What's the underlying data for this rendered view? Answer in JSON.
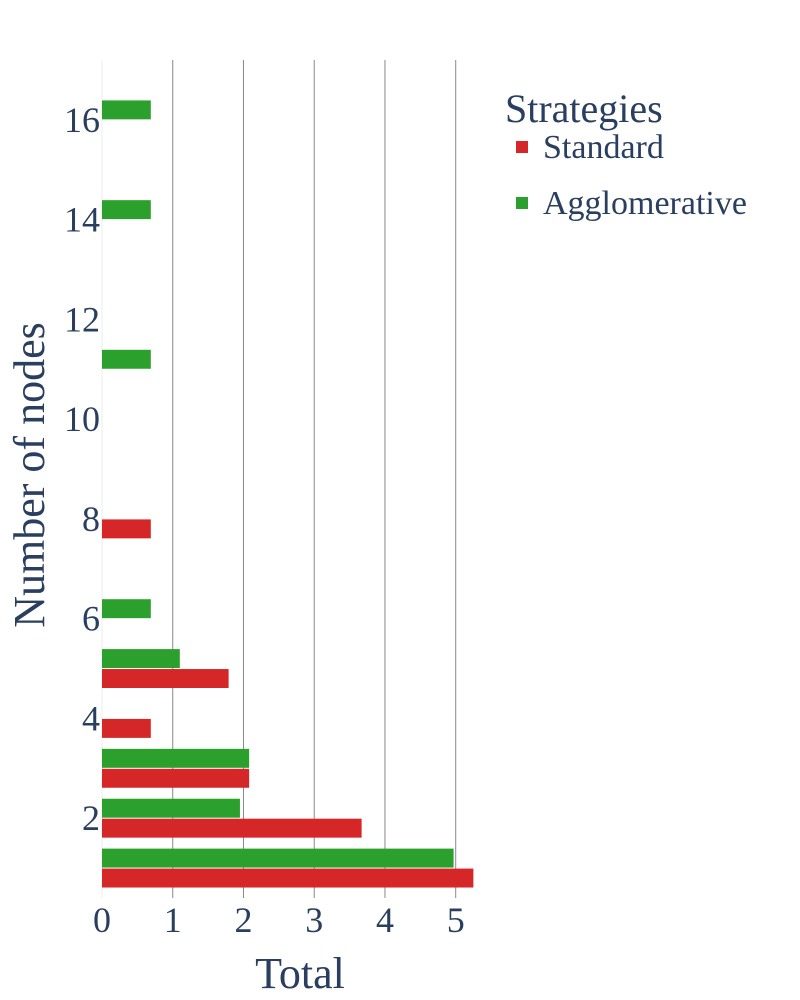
{
  "chart_data": {
    "type": "bar",
    "orientation": "horizontal",
    "title": "",
    "xlabel": "Total",
    "ylabel": "Number of nodes",
    "xlim": [
      0,
      5.4
    ],
    "ylim": [
      0.4,
      17.2
    ],
    "x_ticks": [
      0,
      1,
      2,
      3,
      4,
      5
    ],
    "y_ticks": [
      2,
      4,
      6,
      8,
      10,
      12,
      14,
      16
    ],
    "grid": "vertical",
    "legend": {
      "title": "Strategies",
      "position": "top-right"
    },
    "categories": [
      1,
      2,
      3,
      4,
      5,
      6,
      8,
      11,
      14,
      16
    ],
    "series": [
      {
        "name": "Standard",
        "color": "#d62728",
        "values": [
          5.25,
          3.67,
          2.08,
          0.69,
          1.79,
          null,
          0.69,
          null,
          null,
          null
        ]
      },
      {
        "name": "Agglomerative",
        "color": "#2ca02c",
        "values": [
          4.97,
          1.95,
          2.08,
          null,
          1.1,
          0.69,
          null,
          0.69,
          0.69,
          0.69
        ]
      }
    ]
  }
}
